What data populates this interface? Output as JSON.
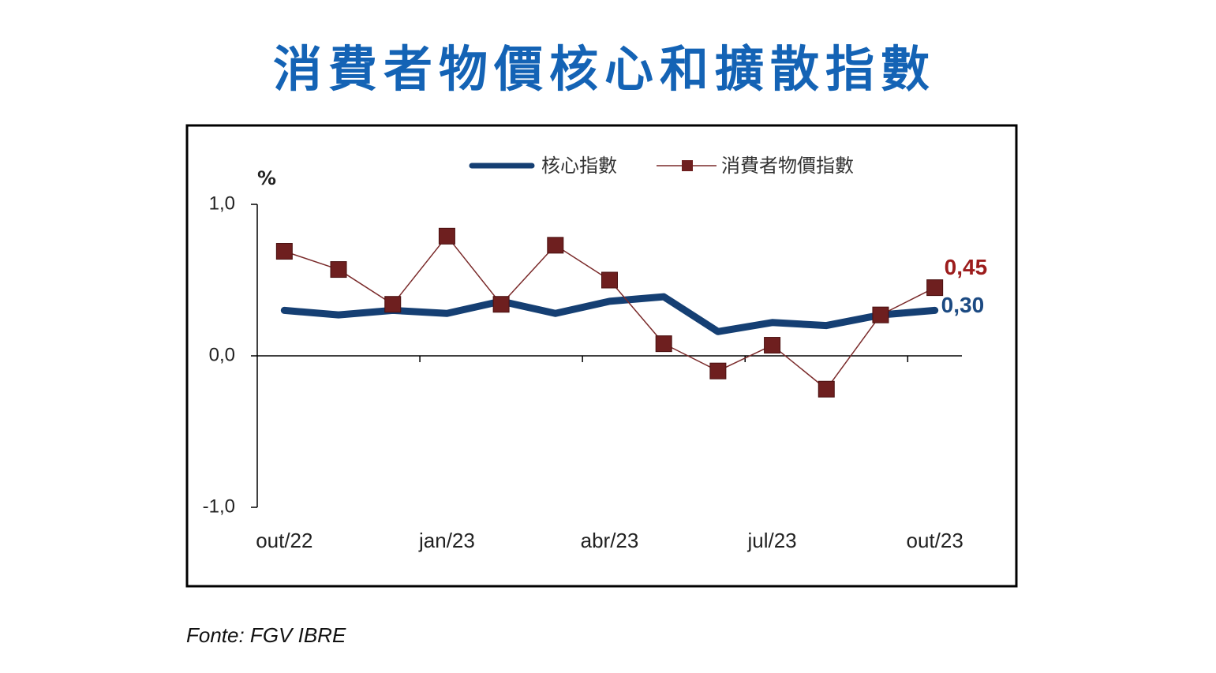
{
  "chart_data": {
    "type": "line",
    "title": "消費者物價核心和擴散指數",
    "y_label": "%",
    "source": "Fonte: FGV IBRE",
    "categories": [
      "out/22",
      null,
      null,
      "jan/23",
      null,
      null,
      "abr/23",
      null,
      null,
      "jul/23",
      null,
      null,
      "out/23"
    ],
    "series": [
      {
        "name": "核心指數",
        "color": "#153f73",
        "values": [
          0.3,
          0.27,
          0.3,
          0.28,
          0.36,
          0.28,
          0.36,
          0.39,
          0.16,
          0.22,
          0.2,
          0.27,
          0.3
        ],
        "value_labels": [
          null,
          null,
          null,
          null,
          null,
          null,
          null,
          null,
          null,
          null,
          null,
          null,
          "0,30"
        ]
      },
      {
        "name": "消費者物價指數",
        "color": "#7a2a2a",
        "values": [
          0.69,
          0.57,
          0.34,
          0.79,
          0.34,
          0.73,
          0.5,
          0.08,
          -0.1,
          0.07,
          -0.22,
          0.27,
          0.45
        ],
        "value_labels": [
          null,
          null,
          null,
          null,
          null,
          null,
          null,
          null,
          null,
          null,
          null,
          null,
          "0,45"
        ]
      }
    ],
    "ylim": [
      -1,
      1
    ],
    "yticks": [
      {
        "value": 1,
        "label": "1,0"
      },
      {
        "value": 0,
        "label": "0,0"
      },
      {
        "value": -1,
        "label": "-1,0"
      }
    ],
    "legend": "top"
  }
}
